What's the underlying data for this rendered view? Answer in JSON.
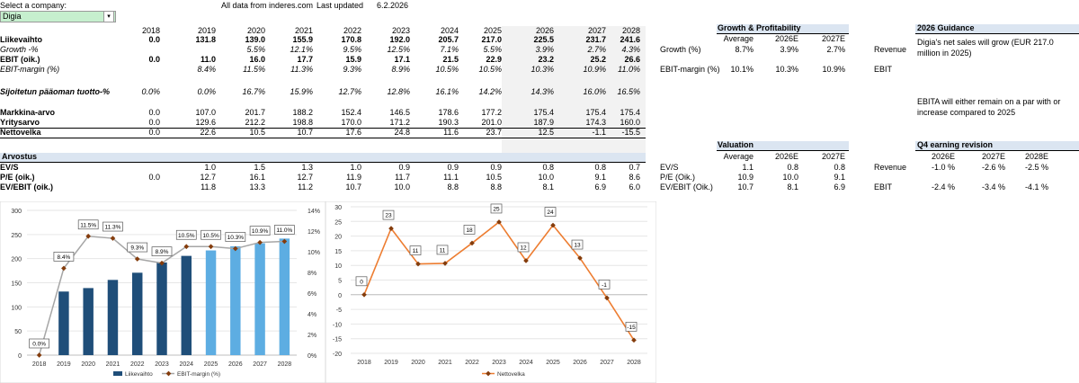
{
  "header": {
    "select_label": "Select a company:",
    "company": "Digia",
    "source": "All data from inderes.com",
    "last_updated_label": "Last updated",
    "last_updated": "6.2.2026"
  },
  "years": [
    "2018",
    "2019",
    "2020",
    "2021",
    "2022",
    "2023",
    "2024",
    "2025",
    "2026",
    "2027",
    "2028"
  ],
  "main_rows": [
    {
      "label": "Liikevaihto",
      "style": "b",
      "values": [
        "0.0",
        "131.8",
        "139.0",
        "155.9",
        "170.8",
        "192.0",
        "205.7",
        "217.0",
        "225.5",
        "231.7",
        "241.6"
      ]
    },
    {
      "label": "Growth -%",
      "style": "i",
      "values": [
        "",
        "",
        "5.5%",
        "12.1%",
        "9.5%",
        "12.5%",
        "7.1%",
        "5.5%",
        "3.9%",
        "2.7%",
        "4.3%"
      ]
    },
    {
      "label": "EBIT (oik.)",
      "style": "b",
      "values": [
        "0.0",
        "11.0",
        "16.0",
        "17.7",
        "15.9",
        "17.1",
        "21.5",
        "22.9",
        "23.2",
        "25.2",
        "26.6"
      ]
    },
    {
      "label": "EBIT-margin (%)",
      "style": "i",
      "values": [
        "",
        "8.4%",
        "11.5%",
        "11.3%",
        "9.3%",
        "8.9%",
        "10.5%",
        "10.5%",
        "10.3%",
        "10.9%",
        "11.0%"
      ]
    },
    {
      "label": "Sijoitetun pääoman tuotto-%",
      "style": "ib",
      "values": [
        "0.0%",
        "0.0%",
        "16.7%",
        "15.9%",
        "12.7%",
        "12.8%",
        "16.1%",
        "14.2%",
        "14.3%",
        "16.0%",
        "16.5%"
      ]
    },
    {
      "label": "Markkina-arvo",
      "style": "b",
      "values": [
        "0.0",
        "107.0",
        "201.7",
        "188.2",
        "152.4",
        "146.5",
        "178.6",
        "177.2",
        "175.4",
        "175.4",
        "175.4"
      ]
    },
    {
      "label": "Yritysarvo",
      "style": "b",
      "values": [
        "0.0",
        "129.6",
        "212.2",
        "198.8",
        "170.0",
        "171.2",
        "190.3",
        "201.0",
        "187.9",
        "174.3",
        "160.0"
      ]
    },
    {
      "label": "Nettovelka",
      "style": "b",
      "values": [
        "0.0",
        "22.6",
        "10.5",
        "10.7",
        "17.6",
        "24.8",
        "11.6",
        "23.7",
        "12.5",
        "-1.1",
        "-15.5"
      ]
    }
  ],
  "valuation_section": {
    "title": "Arvostus",
    "rows": [
      {
        "label": "EV/S",
        "values": [
          "",
          "1.0",
          "1.5",
          "1.3",
          "1.0",
          "0.9",
          "0.9",
          "0.9",
          "0.8",
          "0.8",
          "0.7"
        ]
      },
      {
        "label": "P/E (oik.)",
        "values": [
          "0.0",
          "12.7",
          "16.1",
          "12.7",
          "11.9",
          "11.7",
          "11.1",
          "10.5",
          "10.0",
          "9.1",
          "8.6"
        ]
      },
      {
        "label": "EV/EBIT (oik.)",
        "values": [
          "",
          "11.8",
          "13.3",
          "11.2",
          "10.7",
          "10.0",
          "8.8",
          "8.8",
          "8.1",
          "6.9",
          "6.0"
        ]
      }
    ]
  },
  "growth_panel": {
    "title": "Growth & Profitability",
    "cols": [
      "Average",
      "2026E",
      "2027E"
    ],
    "rows": [
      {
        "label": "Growth (%)",
        "values": [
          "8.7%",
          "3.9%",
          "2.7%"
        ]
      },
      {
        "label": "EBIT-margin (%)",
        "values": [
          "10.1%",
          "10.3%",
          "10.9%"
        ]
      }
    ]
  },
  "guidance_labels": [
    "Revenue",
    "EBIT"
  ],
  "guidance": {
    "title": "2026 Guidance",
    "revenue_text_1": "Digia's net sales will grow (EUR 217.0",
    "revenue_text_2": "million in 2025)",
    "ebit_text_1": "EBITA will either remain on a par with or",
    "ebit_text_2": "increase compared to 2025"
  },
  "valuation_panel": {
    "title": "Valuation",
    "cols": [
      "Average",
      "2026E",
      "2027E"
    ],
    "rows": [
      {
        "label": "EV/S",
        "values": [
          "1.1",
          "0.8",
          "0.8"
        ]
      },
      {
        "label": "P/E (Oik.)",
        "values": [
          "10.9",
          "10.0",
          "9.1"
        ]
      },
      {
        "label": "EV/EBIT (Oik.)",
        "values": [
          "10.7",
          "8.1",
          "6.9"
        ]
      }
    ]
  },
  "revision_panel": {
    "title": "Q4 earning revision",
    "cols": [
      "2026E",
      "2027E",
      "2028E"
    ],
    "rows": [
      {
        "label": "Revenue",
        "values": [
          "-1.0 %",
          "-2.6 %",
          "-2.5 %"
        ]
      },
      {
        "label": "EBIT",
        "values": [
          "-2.4 %",
          "-3.4 %",
          "-4.1 %"
        ]
      }
    ]
  },
  "chart_data": [
    {
      "type": "bar",
      "categories": [
        "2018",
        "2019",
        "2020",
        "2021",
        "2022",
        "2023",
        "2024",
        "2025",
        "2026",
        "2027",
        "2028"
      ],
      "series": [
        {
          "name": "Liikevaihto",
          "type": "bar",
          "values": [
            0,
            131.8,
            139.0,
            155.9,
            170.8,
            192.0,
            205.7,
            217.0,
            225.5,
            231.7,
            241.6
          ]
        },
        {
          "name": "EBIT-margin (%)",
          "type": "line",
          "values": [
            0.0,
            8.4,
            11.5,
            11.3,
            9.3,
            8.9,
            10.5,
            10.5,
            10.3,
            10.9,
            11.0
          ]
        }
      ],
      "data_labels": [
        "0.0%",
        "8.4%",
        "11.5%",
        "11.3%",
        "9.3%",
        "8.9%",
        "10.5%",
        "10.5%",
        "10.3%",
        "10.9%",
        "11.0%"
      ],
      "y_left_ticks": [
        "0",
        "50",
        "100",
        "150",
        "200",
        "250",
        "300"
      ],
      "y_right_ticks": [
        "0%",
        "2%",
        "4%",
        "6%",
        "8%",
        "10%",
        "12%",
        "14%"
      ],
      "ylim_left": [
        0,
        300
      ],
      "ylim_right": [
        0,
        14
      ],
      "colors": {
        "actual": "#1f4e79",
        "forecast": "#5dade2",
        "line": "#a6a6a6",
        "marker": "#843c0c"
      },
      "legend_bar": "Liikevaihto",
      "legend_line": "EBIT-margin (%)",
      "legend_position": "bottom"
    },
    {
      "type": "line",
      "categories": [
        "2018",
        "2019",
        "2020",
        "2021",
        "2022",
        "2023",
        "2024",
        "2025",
        "2026",
        "2027",
        "2028"
      ],
      "series": [
        {
          "name": "Nettovelka",
          "values": [
            0,
            22.6,
            10.5,
            10.7,
            17.6,
            24.8,
            11.6,
            23.7,
            12.5,
            -1.1,
            -15.5
          ]
        }
      ],
      "data_labels": [
        "0",
        "23",
        "11",
        "11",
        "18",
        "25",
        "12",
        "24",
        "13",
        "-1",
        "-15"
      ],
      "y_ticks": [
        "-20",
        "-15",
        "-10",
        "-5",
        "0",
        "5",
        "10",
        "15",
        "20",
        "25",
        "30"
      ],
      "ylim": [
        -20,
        30
      ],
      "colors": {
        "line": "#ed7d31",
        "marker": "#843c0c"
      },
      "legend": "Nettovelka",
      "legend_position": "bottom"
    }
  ]
}
